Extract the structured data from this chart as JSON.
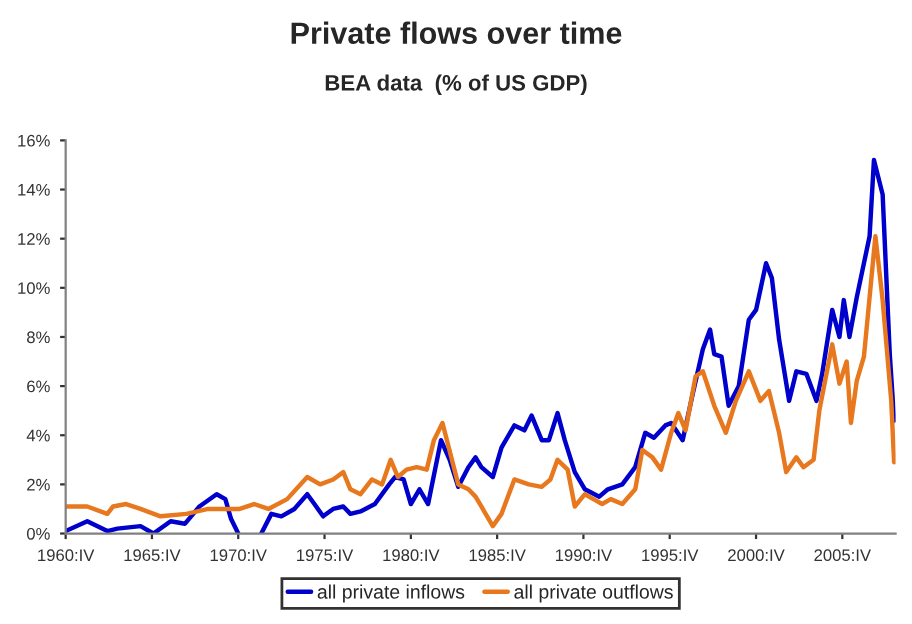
{
  "chart_data": {
    "type": "line",
    "title": "Private flows over time",
    "subtitle": "BEA data  (% of US GDP)",
    "xlim": [
      "1960-10",
      "2008-11"
    ],
    "ylim": [
      0,
      16
    ],
    "xticks": [
      {
        "value": "1960-10",
        "label": "1960:IV"
      },
      {
        "value": "1965-10",
        "label": "1965:IV"
      },
      {
        "value": "1970-10",
        "label": "1970:IV"
      },
      {
        "value": "1975-10",
        "label": "1975:IV"
      },
      {
        "value": "1980-10",
        "label": "1980:IV"
      },
      {
        "value": "1985-10",
        "label": "1985:IV"
      },
      {
        "value": "1990-10",
        "label": "1990:IV"
      },
      {
        "value": "1995-10",
        "label": "1995:IV"
      },
      {
        "value": "2000-10",
        "label": "2000:IV"
      },
      {
        "value": "2005-10",
        "label": "2005:IV"
      }
    ],
    "yticks": [
      {
        "value": 0,
        "label": "0%"
      },
      {
        "value": 2,
        "label": "2%"
      },
      {
        "value": 4,
        "label": "4%"
      },
      {
        "value": 6,
        "label": "6%"
      },
      {
        "value": 8,
        "label": "8%"
      },
      {
        "value": 10,
        "label": "10%"
      },
      {
        "value": 12,
        "label": "12%"
      },
      {
        "value": 14,
        "label": "14%"
      },
      {
        "value": 16,
        "label": "16%"
      }
    ],
    "grid": false,
    "legend": "bottom",
    "line_style": "solid",
    "marker": "none",
    "series": [
      {
        "name": "all private inflows",
        "color": "#0000cc",
        "x": [
          "1960-10",
          "1962-01",
          "1963-03",
          "1963-10",
          "1965-02",
          "1965-11",
          "1966-11",
          "1967-09",
          "1968-07",
          "1969-07",
          "1970-01",
          "1970-05",
          "1970-10",
          "1971-07",
          "1972-02",
          "1972-09",
          "1973-04",
          "1974-01",
          "1974-10",
          "1975-03",
          "1975-09",
          "1976-04",
          "1976-11",
          "1977-04",
          "1977-11",
          "1978-09",
          "1979-07",
          "1979-11",
          "1980-05",
          "1980-10",
          "1981-04",
          "1981-10",
          "1982-07",
          "1983-01",
          "1983-07",
          "1984-02",
          "1984-07",
          "1984-11",
          "1985-07",
          "1986-01",
          "1986-10",
          "1987-05",
          "1987-10",
          "1988-05",
          "1988-10",
          "1989-04",
          "1989-09",
          "1990-04",
          "1990-11",
          "1991-09",
          "1992-03",
          "1993-01",
          "1993-10",
          "1994-05",
          "1994-11",
          "1995-07",
          "1995-11",
          "1996-07",
          "1997-02",
          "1997-09",
          "1998-02",
          "1998-05",
          "1998-10",
          "1999-03",
          "1999-10",
          "2000-05",
          "2000-10",
          "2001-05",
          "2001-09",
          "2002-02",
          "2002-09",
          "2003-02",
          "2003-09",
          "2004-04",
          "2004-08",
          "2005-03",
          "2005-08",
          "2005-11",
          "2006-03",
          "2006-08",
          "2007-05",
          "2007-08",
          "2008-02",
          "2008-07",
          "2008-10"
        ],
        "values": [
          0.1,
          0.5,
          0.1,
          0.2,
          0.3,
          0.0,
          0.5,
          0.4,
          1.1,
          1.6,
          1.4,
          0.6,
          0.0,
          null,
          0.0,
          0.8,
          0.7,
          1.0,
          1.6,
          1.2,
          0.7,
          1.0,
          1.1,
          0.8,
          0.9,
          1.2,
          2.0,
          2.3,
          2.2,
          1.2,
          1.8,
          1.2,
          3.8,
          3.0,
          1.9,
          2.7,
          3.1,
          2.7,
          2.3,
          3.5,
          4.4,
          4.2,
          4.8,
          3.8,
          3.8,
          4.9,
          3.8,
          2.5,
          1.8,
          1.5,
          1.8,
          2.0,
          2.7,
          4.1,
          3.9,
          4.4,
          4.5,
          3.8,
          5.7,
          7.5,
          8.3,
          7.3,
          7.2,
          5.2,
          6.0,
          8.7,
          9.1,
          11.0,
          10.4,
          7.9,
          5.4,
          6.6,
          6.5,
          5.4,
          6.5,
          9.1,
          8.0,
          9.5,
          8.0,
          9.6,
          12.1,
          15.2,
          13.8,
          7.3,
          4.6
        ]
      },
      {
        "name": "all private outflows",
        "color": "#e8781e",
        "x": [
          "1960-10",
          "1962-01",
          "1963-03",
          "1963-07",
          "1964-04",
          "1965-02",
          "1966-04",
          "1967-10",
          "1969-01",
          "1970-02",
          "1970-11",
          "1971-09",
          "1972-07",
          "1973-08",
          "1974-10",
          "1975-07",
          "1976-04",
          "1976-11",
          "1977-04",
          "1977-11",
          "1978-07",
          "1979-02",
          "1979-08",
          "1980-01",
          "1980-07",
          "1981-02",
          "1981-09",
          "1982-02",
          "1982-08",
          "1983-07",
          "1984-02",
          "1984-07",
          "1984-11",
          "1985-07",
          "1986-01",
          "1986-10",
          "1987-08",
          "1988-05",
          "1988-11",
          "1989-04",
          "1989-11",
          "1990-04",
          "1990-11",
          "1991-05",
          "1991-11",
          "1992-05",
          "1993-01",
          "1993-10",
          "1994-03",
          "1994-10",
          "1995-04",
          "1995-11",
          "1996-04",
          "1996-09",
          "1997-04",
          "1997-09",
          "1998-05",
          "1999-01",
          "1999-08",
          "2000-05",
          "2001-01",
          "2001-07",
          "2002-02",
          "2002-07",
          "2003-02",
          "2003-07",
          "2004-02",
          "2004-06",
          "2005-03",
          "2005-08",
          "2006-01",
          "2006-04",
          "2006-08",
          "2007-01",
          "2007-09",
          "2008-02",
          "2008-08",
          "2008-10"
        ],
        "values": [
          1.1,
          1.1,
          0.8,
          1.1,
          1.2,
          1.0,
          0.7,
          0.8,
          1.0,
          1.0,
          1.0,
          1.2,
          1.0,
          1.4,
          2.3,
          2.0,
          2.2,
          2.5,
          1.8,
          1.6,
          2.2,
          2.0,
          3.0,
          2.3,
          2.6,
          2.7,
          2.6,
          3.8,
          4.5,
          2.0,
          1.8,
          1.5,
          1.1,
          0.3,
          0.8,
          2.2,
          2.0,
          1.9,
          2.2,
          3.0,
          2.6,
          1.1,
          1.6,
          1.4,
          1.2,
          1.4,
          1.2,
          1.8,
          3.4,
          3.1,
          2.6,
          4.1,
          4.9,
          4.2,
          6.4,
          6.6,
          5.2,
          4.1,
          5.4,
          6.6,
          5.4,
          5.8,
          4.1,
          2.5,
          3.1,
          2.7,
          3.0,
          5.0,
          7.7,
          6.1,
          7.0,
          4.5,
          6.2,
          7.2,
          12.1,
          9.5,
          5.4,
          2.9
        ]
      }
    ]
  }
}
